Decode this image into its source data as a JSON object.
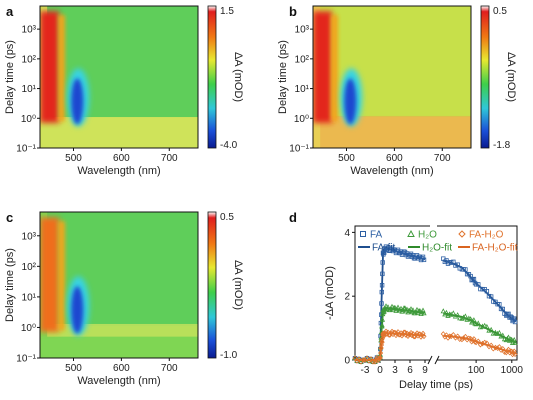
{
  "chart_data": [
    {
      "type": "heatmap",
      "panel_label": "a",
      "xlabel": "Wavelength (nm)",
      "ylabel": "Delay time (ps)",
      "xlim": [
        430,
        760
      ],
      "x_ticks": [
        "500",
        "600",
        "700"
      ],
      "ylim": [
        0.1,
        6000
      ],
      "y_scale": "log",
      "y_ticks": [
        "10⁻¹",
        "10⁰",
        "10¹",
        "10²",
        "10³"
      ],
      "colorbar": {
        "label": "ΔA (mOD)",
        "max": "1.5",
        "min": "-4.0",
        "vmax": 1.5,
        "vmin": -4.0
      }
    },
    {
      "type": "heatmap",
      "panel_label": "b",
      "xlabel": "Wavelength (nm)",
      "ylabel": "Delay time (ps)",
      "xlim": [
        430,
        760
      ],
      "x_ticks": [
        "500",
        "600",
        "700"
      ],
      "ylim": [
        0.1,
        6000
      ],
      "y_scale": "log",
      "y_ticks": [
        "10⁻¹",
        "10⁰",
        "10¹",
        "10²",
        "10³"
      ],
      "colorbar": {
        "label": "ΔA (mOD)",
        "max": "0.5",
        "min": "-1.8",
        "vmax": 0.5,
        "vmin": -1.8
      }
    },
    {
      "type": "heatmap",
      "panel_label": "c",
      "xlabel": "Wavelength (nm)",
      "ylabel": "Delay time (ps)",
      "xlim": [
        430,
        760
      ],
      "x_ticks": [
        "500",
        "600",
        "700"
      ],
      "ylim": [
        0.1,
        6000
      ],
      "y_scale": "log",
      "y_ticks": [
        "10⁻¹",
        "10⁰",
        "10¹",
        "10²",
        "10³"
      ],
      "colorbar": {
        "label": "ΔA (mOD)",
        "max": "0.5",
        "min": "-1.0",
        "vmax": 0.5,
        "vmin": -1.0
      }
    },
    {
      "type": "scatter",
      "panel_label": "d",
      "xlabel": "Delay time (ps)",
      "ylabel": "-ΔA (mOD)",
      "x_scale": "linear-log broken axis",
      "xlim_linear": [
        -5,
        10
      ],
      "xlim_log": [
        8,
        1400
      ],
      "x_ticks": [
        "-3",
        "0",
        "3",
        "6",
        "9",
        "100",
        "1000"
      ],
      "ylim": [
        0,
        4.2
      ],
      "y_ticks": [
        "0",
        "2",
        "4"
      ],
      "legend_position": "top",
      "legend": {
        "markers": [
          {
            "label": "FA",
            "marker": "square",
            "color": "#2d5fa3"
          },
          {
            "label": "H₂O",
            "marker": "triangle",
            "color": "#3e9a3a"
          },
          {
            "label": "FA-H₂O",
            "marker": "diamond",
            "color": "#e0742e"
          }
        ],
        "fits": [
          {
            "label": "FA-fit",
            "color": "#1f4f8f"
          },
          {
            "label": "H₂O-fit",
            "color": "#2f8a2b"
          },
          {
            "label": "FA-H₂O-fit",
            "color": "#d96420"
          }
        ]
      },
      "series": [
        {
          "name": "FA",
          "color": "#2d5fa3",
          "amplitude": 3.55,
          "points": [
            [
              -5,
              0
            ],
            [
              -3,
              0
            ],
            [
              -1,
              0
            ],
            [
              0,
              0.05
            ],
            [
              0.3,
              1.8
            ],
            [
              0.6,
              3.3
            ],
            [
              1,
              3.5
            ],
            [
              2,
              3.48
            ],
            [
              3,
              3.42
            ],
            [
              4,
              3.38
            ],
            [
              5,
              3.33
            ],
            [
              6,
              3.28
            ],
            [
              7,
              3.24
            ],
            [
              8,
              3.2
            ],
            [
              9,
              3.16
            ],
            [
              12,
              3.12
            ],
            [
              20,
              3.05
            ],
            [
              40,
              2.9
            ],
            [
              70,
              2.6
            ],
            [
              100,
              2.4
            ],
            [
              200,
              2.1
            ],
            [
              400,
              1.75
            ],
            [
              700,
              1.45
            ],
            [
              1000,
              1.3
            ],
            [
              1300,
              1.2
            ]
          ]
        },
        {
          "name": "H₂O",
          "color": "#3e9a3a",
          "amplitude": 1.65,
          "points": [
            [
              -5,
              0
            ],
            [
              -3,
              0
            ],
            [
              -1,
              0
            ],
            [
              0,
              0.05
            ],
            [
              0.3,
              0.9
            ],
            [
              0.6,
              1.5
            ],
            [
              1,
              1.63
            ],
            [
              2,
              1.62
            ],
            [
              3,
              1.6
            ],
            [
              4,
              1.58
            ],
            [
              5,
              1.56
            ],
            [
              6,
              1.54
            ],
            [
              7,
              1.52
            ],
            [
              8,
              1.5
            ],
            [
              9,
              1.49
            ],
            [
              12,
              1.47
            ],
            [
              20,
              1.42
            ],
            [
              40,
              1.35
            ],
            [
              70,
              1.25
            ],
            [
              100,
              1.15
            ],
            [
              200,
              0.98
            ],
            [
              400,
              0.82
            ],
            [
              700,
              0.68
            ],
            [
              1000,
              0.6
            ],
            [
              1300,
              0.55
            ]
          ]
        },
        {
          "name": "FA-H₂O",
          "color": "#e0742e",
          "amplitude": 0.85,
          "points": [
            [
              -5,
              0
            ],
            [
              -3,
              0
            ],
            [
              -1,
              0
            ],
            [
              0,
              0.03
            ],
            [
              0.3,
              0.5
            ],
            [
              0.6,
              0.78
            ],
            [
              1,
              0.84
            ],
            [
              2,
              0.84
            ],
            [
              3,
              0.83
            ],
            [
              4,
              0.82
            ],
            [
              5,
              0.81
            ],
            [
              6,
              0.8
            ],
            [
              7,
              0.79
            ],
            [
              8,
              0.78
            ],
            [
              9,
              0.77
            ],
            [
              12,
              0.76
            ],
            [
              20,
              0.74
            ],
            [
              40,
              0.7
            ],
            [
              70,
              0.64
            ],
            [
              100,
              0.58
            ],
            [
              200,
              0.47
            ],
            [
              400,
              0.37
            ],
            [
              700,
              0.29
            ],
            [
              1000,
              0.24
            ],
            [
              1300,
              0.2
            ]
          ]
        }
      ]
    }
  ]
}
